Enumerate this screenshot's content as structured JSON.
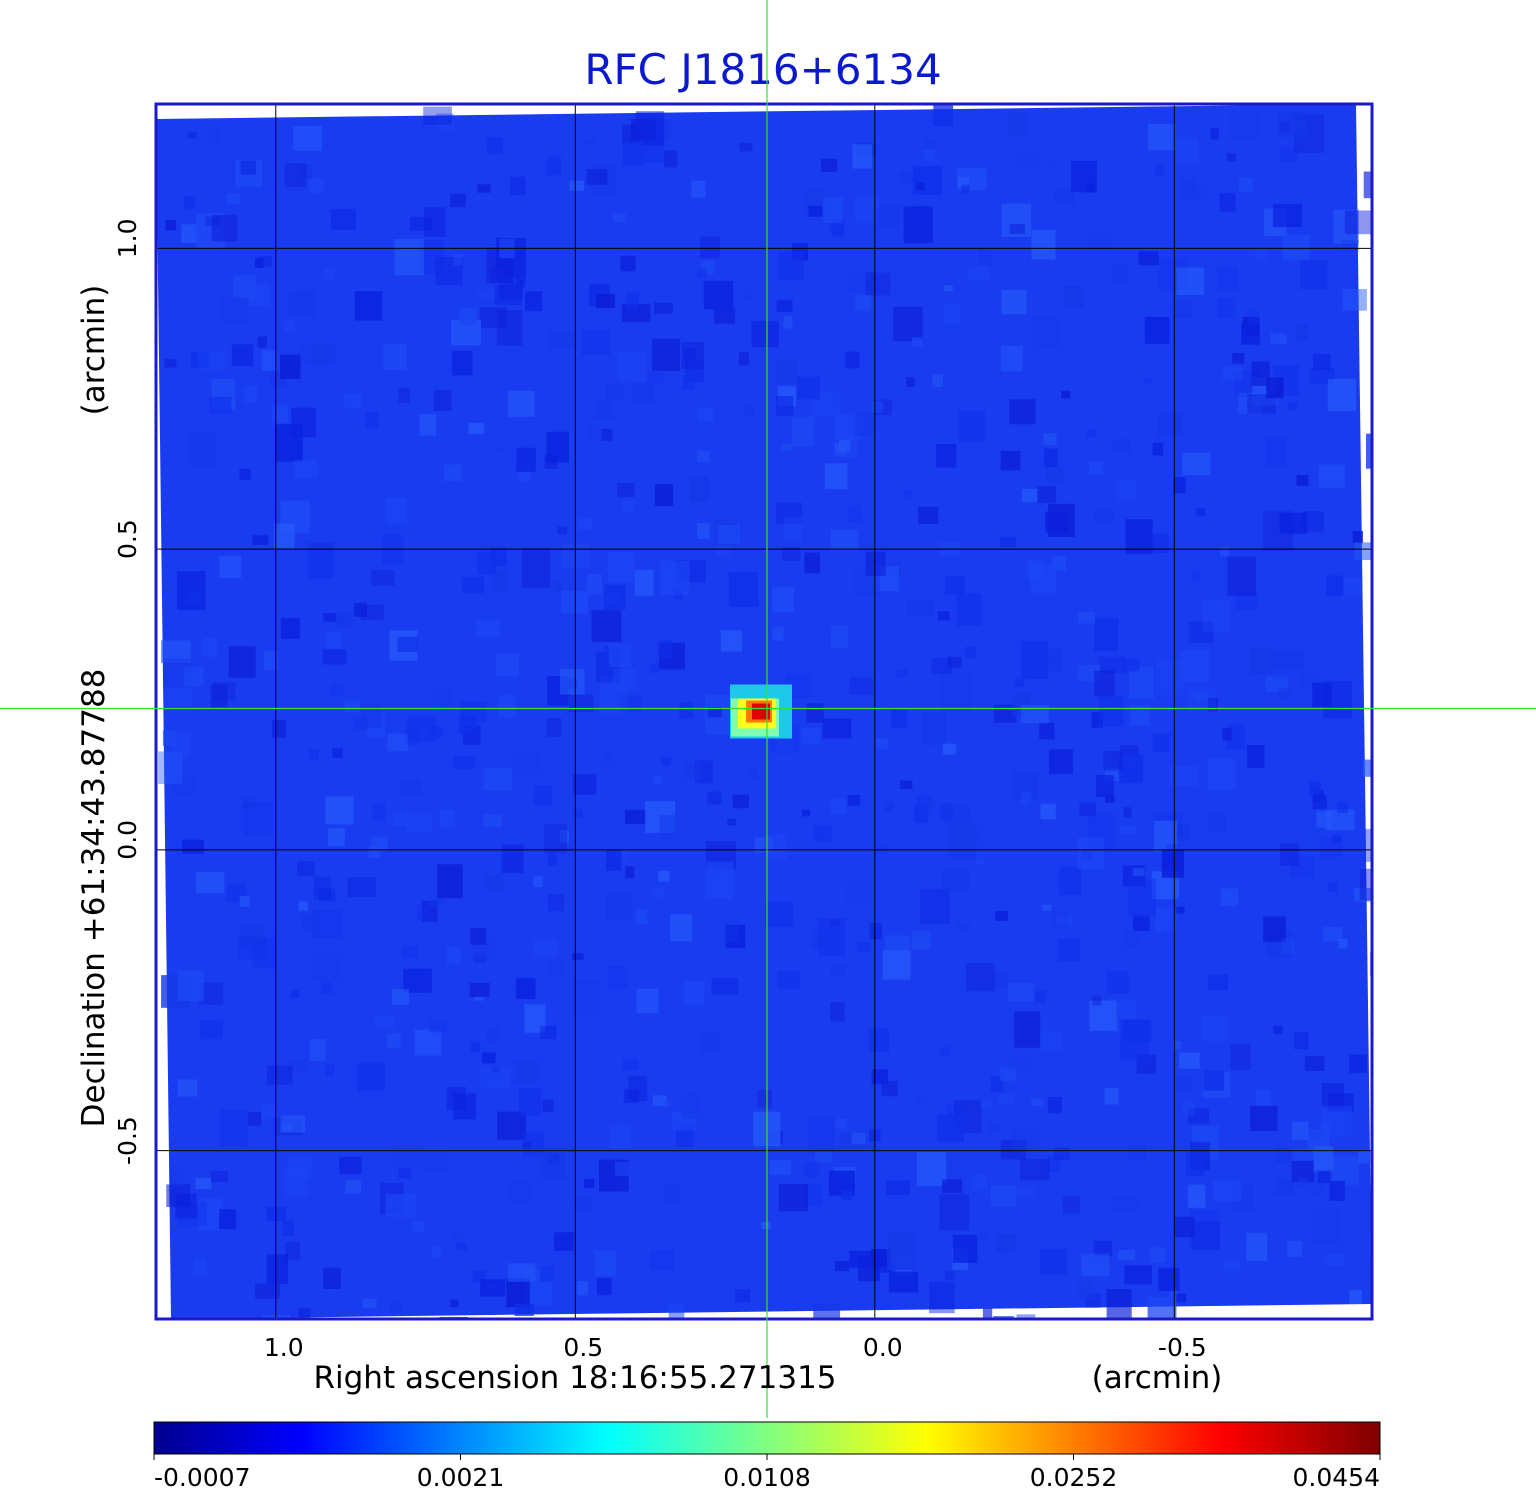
{
  "chart_data": {
    "type": "heatmap",
    "title": "RFC J1816+6134",
    "xlabel": "Right ascension  18:16:55.271315",
    "xunit": "(arcmin)",
    "ylabel": "Declination  +61:34:43.87788",
    "yunit": "(arcmin)",
    "xlim": [
      1.2,
      -0.83
    ],
    "ylim": [
      -0.78,
      1.24
    ],
    "x_ticks": [
      1.0,
      0.5,
      0.0,
      -0.5
    ],
    "x_tick_labels": [
      "1.0",
      "0.5",
      "0.0",
      "-0.5"
    ],
    "y_ticks": [
      1.0,
      0.5,
      0.0,
      -0.5
    ],
    "y_tick_labels": [
      "1.0",
      "0.5",
      "0.0",
      "-0.5"
    ],
    "grid": true,
    "source": {
      "x": 0.19,
      "y": 0.23,
      "peak": 0.0454
    },
    "crosshair": {
      "x": 0.18,
      "y": 0.235
    },
    "colorbar": {
      "ticks": [
        -0.0007,
        0.0021,
        0.0108,
        0.0252,
        0.0454
      ],
      "tick_labels": [
        "-0.0007",
        "0.0021",
        "0.0108",
        "0.0252",
        "0.0454"
      ],
      "colormap": "jet"
    },
    "colors": {
      "title": "#0a19cc",
      "frame": "#1a1acc",
      "grid": "#000000",
      "crosshair": "#35e035",
      "background_field": "#1a3cf0"
    }
  }
}
